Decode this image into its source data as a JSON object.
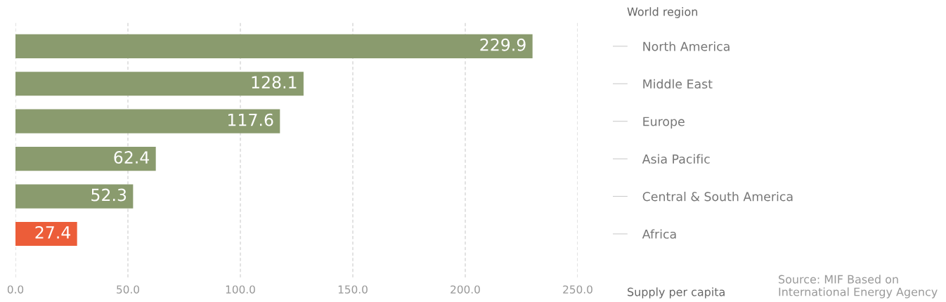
{
  "chart_data": {
    "type": "bar",
    "orientation": "horizontal",
    "categories": [
      "North America",
      "Middle East",
      "Europe",
      "Asia Pacific",
      "Central & South America",
      "Africa"
    ],
    "values": [
      229.9,
      128.1,
      117.6,
      62.4,
      52.3,
      27.4
    ],
    "colors": [
      "#8a9b6e",
      "#8a9b6e",
      "#8a9b6e",
      "#8a9b6e",
      "#8a9b6e",
      "#ec5d39"
    ],
    "xlim": [
      0,
      250
    ],
    "xticks": [
      {
        "value": 0,
        "label": "0.0"
      },
      {
        "value": 50,
        "label": "50.0"
      },
      {
        "value": 100,
        "label": "100.0"
      },
      {
        "value": 150,
        "label": "150.0"
      },
      {
        "value": 200,
        "label": "200.0"
      },
      {
        "value": 250,
        "label": "250.0"
      }
    ],
    "ylabel": "World region",
    "xlabel": "Supply per capita",
    "data_labels": true,
    "grid": "x",
    "legend": false,
    "annotations": [
      "Source: MIF Based on\nInternational Energy Agency"
    ]
  }
}
